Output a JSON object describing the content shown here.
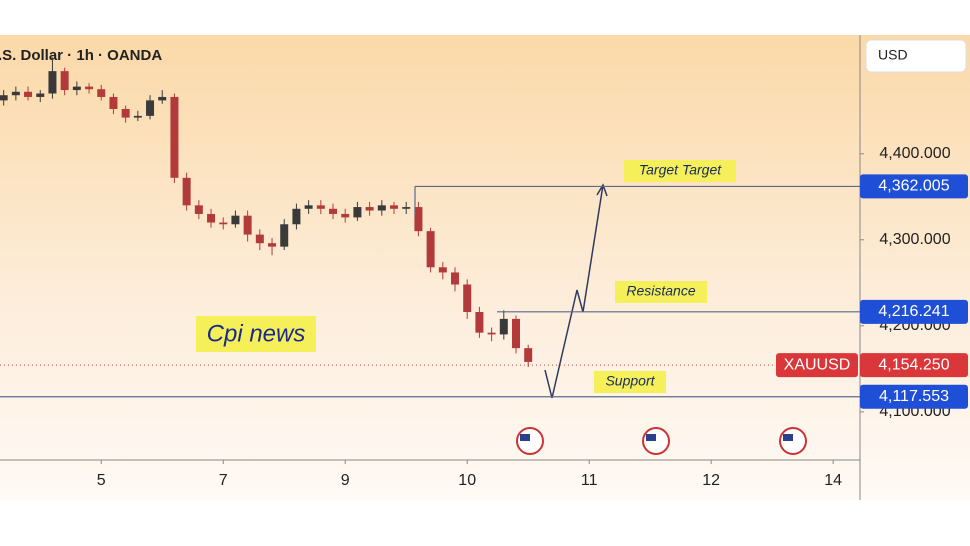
{
  "chart_data": {
    "type": "candlestick",
    "title": ".S. Dollar · 1h · OANDA",
    "currency": "USD",
    "annotation": "Cpi news",
    "up_color": "#3a3a3a",
    "down_color": "#b23a3a",
    "level_color": "#5b6b8c",
    "level_label_color": "#1f4fd6",
    "xlim": [
      -0.83,
      6.22
    ],
    "xticks": [
      {
        "value": 0,
        "label": "5"
      },
      {
        "value": 1,
        "label": "7"
      },
      {
        "value": 2,
        "label": "9"
      },
      {
        "value": 3,
        "label": "10"
      },
      {
        "value": 4,
        "label": "11"
      },
      {
        "value": 5,
        "label": "12"
      },
      {
        "value": 6,
        "label": "14"
      }
    ],
    "ylim": [
      4044,
      4538
    ],
    "yticks": [
      {
        "value": 4400,
        "label": "4,400.000"
      },
      {
        "value": 4300,
        "label": "4,300.000"
      },
      {
        "value": 4200,
        "label": "4,200.000"
      },
      {
        "value": 4100,
        "label": "4,100.000"
      }
    ],
    "x": [
      -0.8,
      -0.7,
      -0.6,
      -0.5,
      -0.4,
      -0.3,
      -0.2,
      -0.1,
      0.0,
      0.1,
      0.2,
      0.3,
      0.4,
      0.5,
      0.6,
      0.7,
      0.8,
      0.9,
      1.0,
      1.1,
      1.2,
      1.3,
      1.4,
      1.5,
      1.6,
      1.7,
      1.8,
      1.9,
      2.0,
      2.1,
      2.2,
      2.3,
      2.4,
      2.5,
      2.6,
      2.7,
      2.8,
      2.9,
      3.0,
      3.1,
      3.2,
      3.3,
      3.4,
      3.5
    ],
    "open": [
      4462,
      4468,
      4472,
      4466,
      4470,
      4496,
      4474,
      4478,
      4475,
      4466,
      4452,
      4442,
      4444,
      4462,
      4466,
      4372,
      4340,
      4330,
      4320,
      4318,
      4328,
      4306,
      4296,
      4292,
      4318,
      4336,
      4340,
      4336,
      4330,
      4326,
      4338,
      4334,
      4340,
      4336,
      4338,
      4310,
      4268,
      4262,
      4248,
      4216,
      4192,
      4190,
      4208,
      4174
    ],
    "close": [
      4468,
      4472,
      4466,
      4470,
      4496,
      4474,
      4478,
      4475,
      4466,
      4452,
      4442,
      4444,
      4462,
      4466,
      4372,
      4340,
      4330,
      4320,
      4318,
      4328,
      4306,
      4296,
      4292,
      4318,
      4336,
      4340,
      4336,
      4330,
      4326,
      4338,
      4334,
      4340,
      4336,
      4338,
      4310,
      4268,
      4262,
      4248,
      4216,
      4192,
      4190,
      4208,
      4174,
      4158
    ],
    "high": [
      4474,
      4478,
      4478,
      4474,
      4512,
      4500,
      4484,
      4482,
      4480,
      4470,
      4456,
      4450,
      4468,
      4474,
      4470,
      4378,
      4346,
      4336,
      4326,
      4334,
      4334,
      4312,
      4302,
      4324,
      4342,
      4346,
      4346,
      4342,
      4336,
      4344,
      4344,
      4346,
      4344,
      4344,
      4344,
      4314,
      4274,
      4268,
      4254,
      4222,
      4198,
      4218,
      4212,
      4178
    ],
    "low": [
      4456,
      4462,
      4462,
      4460,
      4464,
      4468,
      4468,
      4470,
      4462,
      4446,
      4436,
      4438,
      4440,
      4458,
      4366,
      4334,
      4324,
      4314,
      4312,
      4314,
      4298,
      4288,
      4282,
      4288,
      4312,
      4330,
      4330,
      4324,
      4320,
      4322,
      4328,
      4328,
      4330,
      4330,
      4304,
      4262,
      4254,
      4240,
      4208,
      4186,
      4182,
      4184,
      4168,
      4152
    ],
    "levels": [
      {
        "name": "Target Target",
        "value": 4362.005,
        "label": "4,362.005"
      },
      {
        "name": "Resistance",
        "value": 4216.241,
        "label": "4,216.241"
      },
      {
        "name": "Support",
        "value": 4117.553,
        "label": "4,117.553"
      }
    ],
    "current_price": {
      "name": "XAUUSD",
      "value": 4154.25,
      "label": "4,154.250"
    }
  }
}
